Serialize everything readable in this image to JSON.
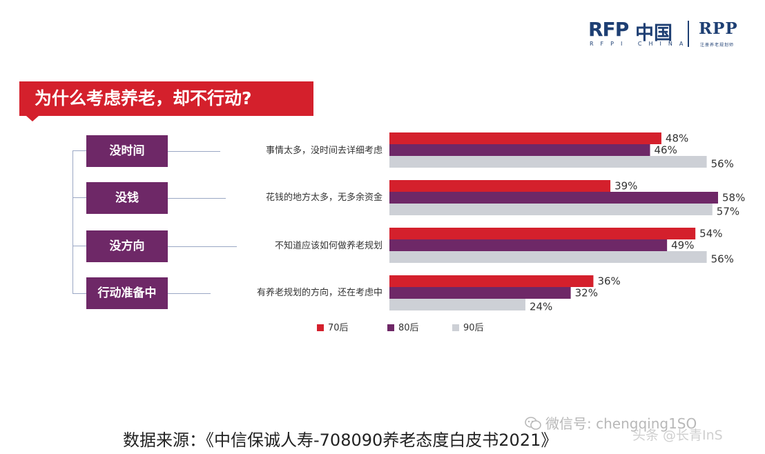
{
  "logo": {
    "rfp": "RFP",
    "cn": "中国",
    "rpp": "RPP",
    "sub": "RFPI CHINA",
    "sub2": "注册养老规划师"
  },
  "banner": {
    "title": "为什么考虑养老，却不行动?"
  },
  "chart_data": {
    "type": "bar",
    "orientation": "horizontal",
    "title": "为什么考虑养老，却不行动?",
    "categories": [
      "没时间",
      "没钱",
      "没方向",
      "行动准备中"
    ],
    "descriptions": [
      "事情太多，没时间去详细考虑",
      "花钱的地方太多，无多余资金",
      "不知道应该如何做养老规划",
      "有养老规划的方向，还在考虑中"
    ],
    "series": [
      {
        "name": "70后",
        "color": "#d4202c",
        "values": [
          48,
          39,
          54,
          36
        ]
      },
      {
        "name": "80后",
        "color": "#6e2867",
        "values": [
          46,
          58,
          49,
          32
        ]
      },
      {
        "name": "90后",
        "color": "#cdd0d6",
        "values": [
          56,
          57,
          56,
          24
        ]
      }
    ],
    "value_suffix": "%",
    "xlim": [
      0,
      58
    ],
    "legend_position": "bottom-center",
    "grid": false
  },
  "source": "数据来源：《中信保诚人寿-708090养老态度白皮书2021》",
  "watermark": {
    "wechat": "微信号: chengqing1SO",
    "toutiao": "头条 @长青InS"
  }
}
